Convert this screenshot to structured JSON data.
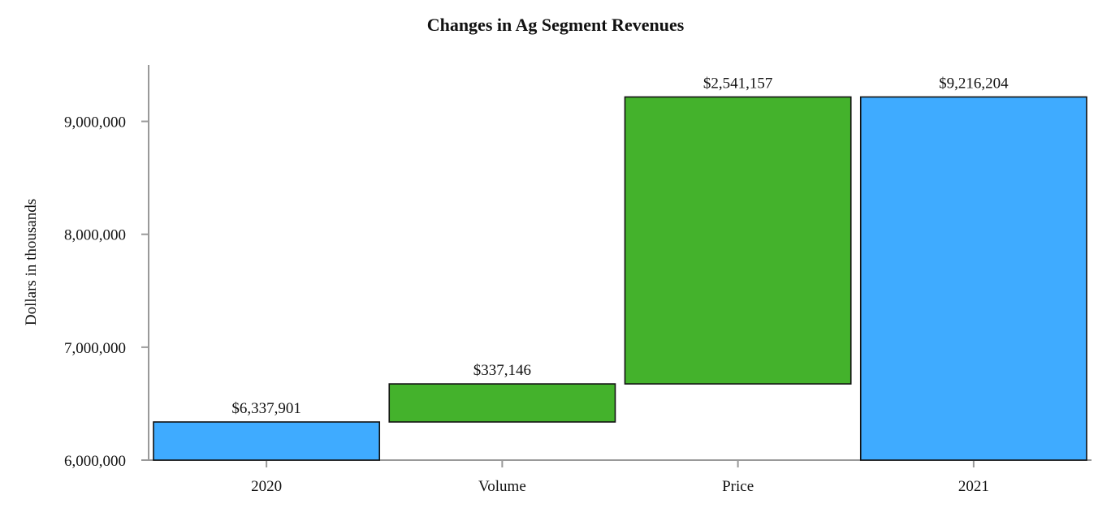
{
  "chart_data": {
    "type": "bar",
    "subtype": "waterfall",
    "title": "Changes in Ag Segment Revenues",
    "xlabel": "",
    "ylabel": "Dollars in thousands",
    "categories": [
      "2020",
      "Volume",
      "Price",
      "2021"
    ],
    "bars": [
      {
        "category": "2020",
        "kind": "total",
        "start": 6000000,
        "end": 6337901,
        "label": "$6,337,901"
      },
      {
        "category": "Volume",
        "kind": "increase",
        "start": 6337901,
        "end": 6675047,
        "label": "$337,146"
      },
      {
        "category": "Price",
        "kind": "increase",
        "start": 6675047,
        "end": 9216204,
        "label": "$2,541,157"
      },
      {
        "category": "2021",
        "kind": "total",
        "start": 6000000,
        "end": 9216204,
        "label": "$9,216,204"
      }
    ],
    "ylim": [
      6000000,
      9500000
    ],
    "yticks": [
      6000000,
      7000000,
      8000000,
      9000000
    ],
    "ytick_labels": [
      "6,000,000",
      "7,000,000",
      "8,000,000",
      "9,000,000"
    ],
    "colors": {
      "total": "#3FABFF",
      "increase": "#44B22C"
    },
    "grid": false,
    "legend": "none"
  }
}
